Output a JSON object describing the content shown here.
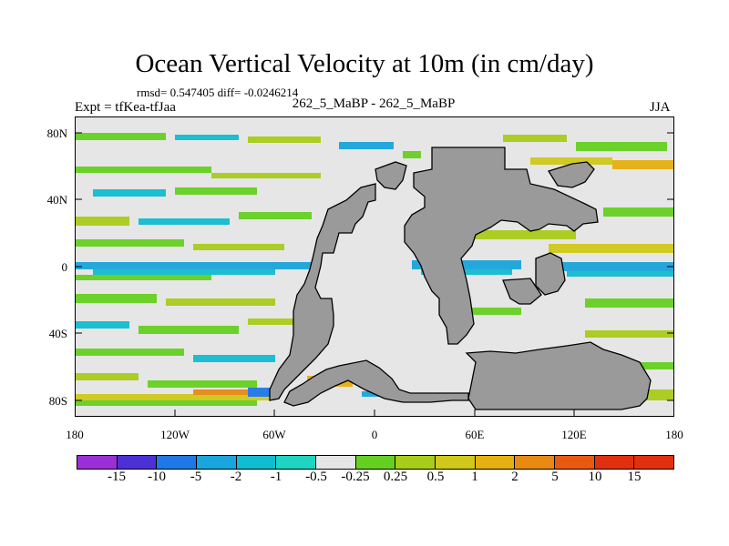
{
  "title": "Ocean Vertical Velocity at 10m (in cm/day)",
  "stats_line": "rmsd= 0.547405 diff= -0.0246214",
  "experiment_label": "Expt = tfKea-tfJaa",
  "runs_label": "262_5_MaBP - 262_5_MaBP",
  "season_label": "JJA",
  "lat_labels": [
    "80N",
    "40N",
    "0",
    "40S",
    "80S"
  ],
  "lon_labels": [
    "180",
    "120W",
    "60W",
    "0",
    "60E",
    "120E",
    "180"
  ],
  "colorbar": {
    "labels": [
      "-15",
      "-10",
      "-5",
      "-2",
      "-1",
      "-0.5",
      "-0.25",
      "0.25",
      "0.5",
      "1",
      "2",
      "5",
      "10",
      "15"
    ],
    "colors": [
      "#9b2fd6",
      "#4b30d6",
      "#1f78e6",
      "#1aa5dc",
      "#12bcd0",
      "#20d4c2",
      "#e6e6e6",
      "#66d022",
      "#a8cc1a",
      "#d0c81a",
      "#e6b012",
      "#e88a12",
      "#e85a12",
      "#e03010"
    ]
  },
  "land_color": "#9a9a9a",
  "map_background_color": "#e6e6e6"
}
